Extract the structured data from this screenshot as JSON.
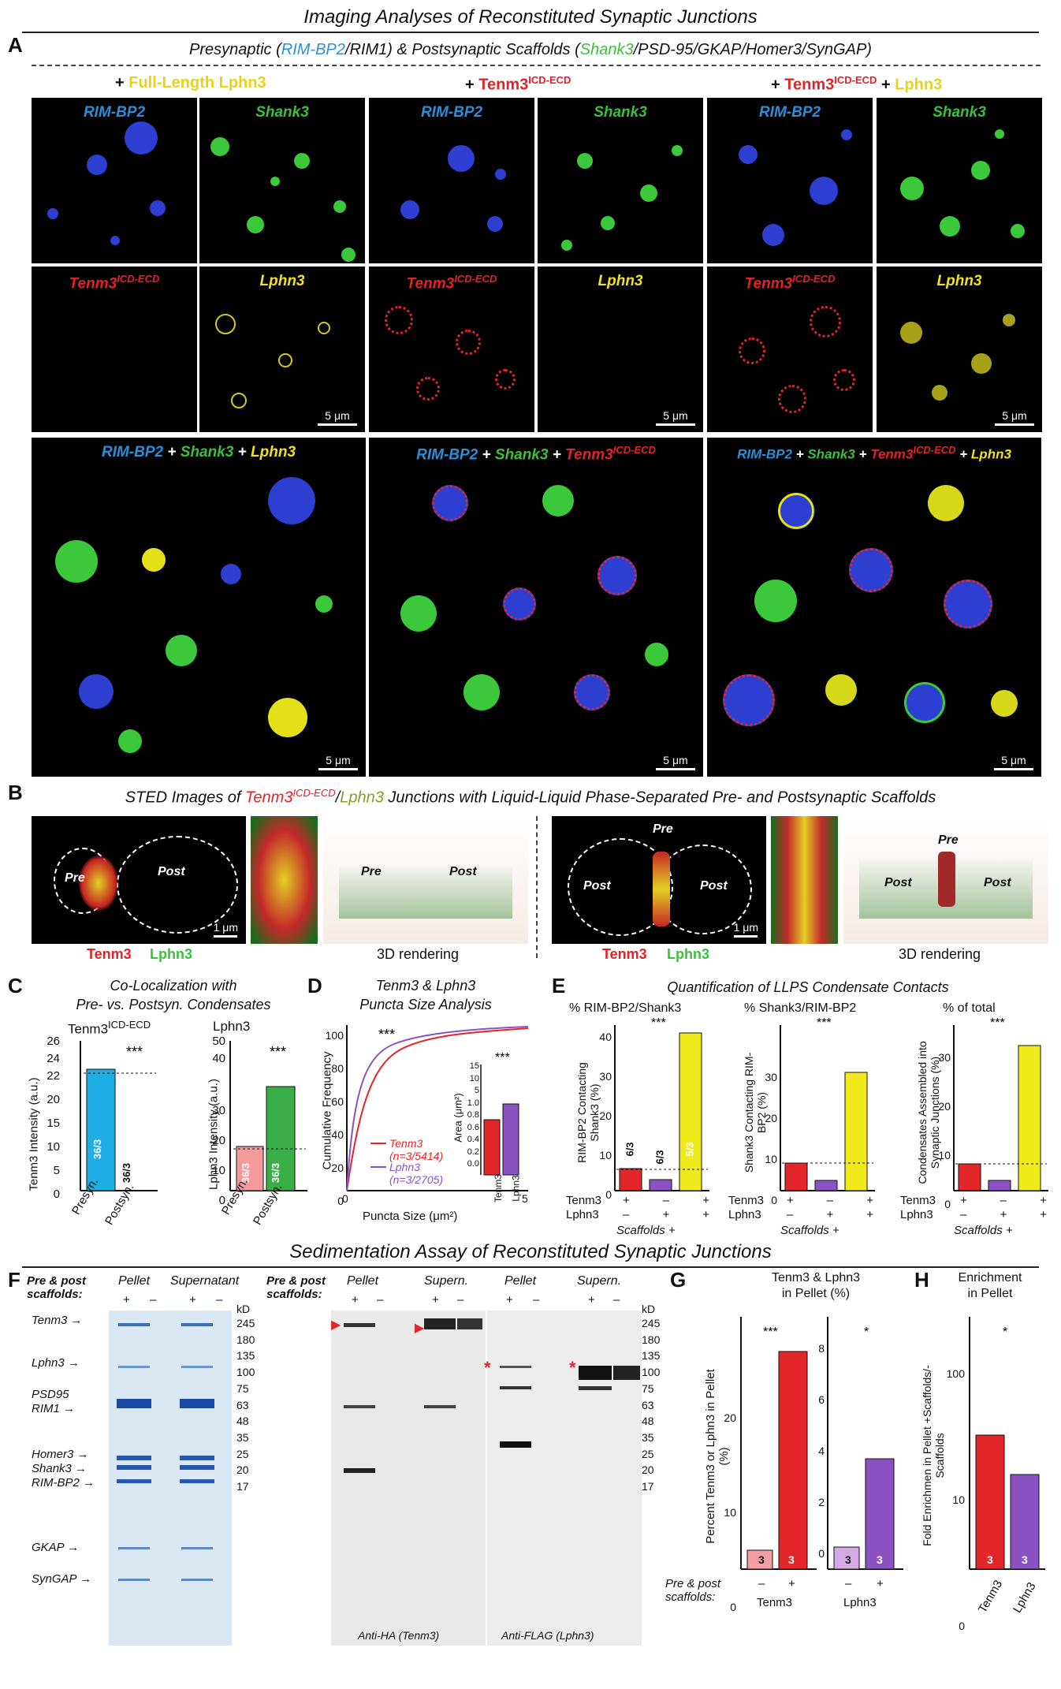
{
  "titles": {
    "imaging": "Imaging Analyses of Reconstituted Synaptic Junctions",
    "sedimentation": "Sedimentation Assay of Reconstituted Synaptic Junctions"
  },
  "panelA": {
    "letter": "A",
    "header_prefix": "Presynaptic (",
    "header_rimbp2": "RIM-BP2",
    "header_mid": "/RIM1) & Postsynaptic Scaffolds (",
    "header_shank3": "Shank3",
    "header_suffix": "/PSD-95/GKAP/Homer3/SynGAP)",
    "cond1_plus": "+ ",
    "cond1": "Full-Length Lphn3",
    "cond2_plus": "+ ",
    "cond2": "Tenm3",
    "cond2_sup": "ICD-ECD",
    "cond3_plus": "+ ",
    "cond3": "Tenm3",
    "cond3_sup": "ICD-ECD",
    "cond3_plus2": " + ",
    "cond3_b": "Lphn3",
    "label_rimbp2": "RIM-BP2",
    "label_shank3": "Shank3",
    "label_tenm3": "Tenm3",
    "label_sup": "ICD-ECD",
    "label_lphn3": "Lphn3",
    "plus": " + ",
    "scale": "5 μm"
  },
  "panelB": {
    "letter": "B",
    "title_prefix": "STED Images of ",
    "title_tenm3": "Tenm3",
    "title_sup": "ICD-ECD",
    "title_slash": "/",
    "title_lphn3": "Lphn3",
    "title_suffix": " Junctions with Liquid-Liquid Phase-Separated Pre- and Postsynaptic Scaffolds",
    "pre": "Pre",
    "post": "Post",
    "scale": "1 μm",
    "legend_tenm3": "Tenm3",
    "legend_lphn3": "Lphn3",
    "rendering": "3D rendering"
  },
  "panelC": {
    "letter": "C",
    "title1": "Co-Localization with",
    "title2": "Pre- vs. Postsyn. Condensates",
    "sub_tenm3": "Tenm3",
    "sub_sup": "ICD-ECD",
    "sub_lphn3": "Lphn3",
    "ylabel_tenm3": "Tenm3 Intensity (a.u.)",
    "ylabel_lphn3": "Lphn3 Intensity (a.u.)",
    "sig": "***",
    "n_presyn_t": "36/3",
    "n_postsyn_t": "36/3",
    "n_presyn_l": "36/3",
    "n_postsyn_l": "36/3",
    "xlabel_pre": "Presyn.",
    "xlabel_post": "Postsyn.",
    "ticks_tenm3_top": [
      "26",
      "24",
      "22"
    ],
    "ticks_tenm3": [
      "20",
      "15",
      "10",
      "5",
      "0"
    ],
    "ticks_lphn3_top": [
      "50",
      "40"
    ],
    "ticks_lphn3": [
      "30",
      "20",
      "10",
      "0"
    ]
  },
  "panelD": {
    "letter": "D",
    "title1": "Tenm3 & Lphn3",
    "title2": "Puncta Size Analysis",
    "ylabel": "Cumulative Frequency",
    "xlabel": "Puncta Size (μm²)",
    "sig": "***",
    "legend_tenm3": "Tenm3",
    "legend_tenm3_n": "(n=3/5414)",
    "legend_lphn3": "Lphn3",
    "legend_lphn3_n": "(n=3/2705)",
    "yticks": [
      "100",
      "80",
      "60",
      "40",
      "20",
      "0"
    ],
    "xticks": [
      "0",
      "5"
    ],
    "inset_ylabel": "Area (μm²)",
    "inset_ticks": [
      "15",
      "10",
      "5",
      "1.0",
      "0.8",
      "0.6",
      "0.4",
      "0.2",
      "0.0"
    ],
    "inset_x": [
      "Tenm3",
      "Lphn3"
    ]
  },
  "panelE": {
    "letter": "E",
    "title": "Quantification of LLPS Condensate Contacts",
    "sub1": "% RIM-BP2/Shank3",
    "sub2": "% Shank3/RIM-BP2",
    "sub3": "% of total",
    "ylabel1": "RIM-BP2 Contacting Shank3 (%)",
    "ylabel2": "Shank3 Contacting RIM-BP2 (%)",
    "ylabel3": "Condensates Assembled into Synaptic Junctions (%)",
    "sig": "***",
    "n1": "6/3",
    "n2": "6/3",
    "n3": "5/3",
    "row_tenm3": "Tenm3",
    "row_lphn3": "Lphn3",
    "plus": "+",
    "minus": "–",
    "footer": "Scaffolds +",
    "ticks1": [
      "40",
      "30",
      "20",
      "10",
      "0"
    ],
    "ticks2": [
      "30",
      "20",
      "10",
      "0"
    ],
    "ticks3": [
      "30",
      "20",
      "10",
      "0"
    ]
  },
  "panelF": {
    "letter": "F",
    "scaffolds_label": "Pre & post scaffolds:",
    "pellet": "Pellet",
    "supernatant": "Supernatant",
    "supern": "Supern.",
    "plus": "+",
    "minus": "–",
    "kd": "kD",
    "markers": [
      "245",
      "180",
      "135",
      "100",
      "75",
      "63",
      "48",
      "35",
      "25",
      "20",
      "17"
    ],
    "bands": [
      "Tenm3",
      "Lphn3",
      "PSD95",
      "RIM1",
      "Homer3",
      "Shank3",
      "RIM-BP2",
      "GKAP",
      "SynGAP"
    ],
    "antiHA": "Anti-HA (Tenm3)",
    "antiFLAG": "Anti-FLAG (Lphn3)"
  },
  "panelG": {
    "letter": "G",
    "title1": "Tenm3 & Lphn3",
    "title2": "in Pellet (%)",
    "ylabel": "Percent Tenm3 or Lphn3 in Pellet (%)",
    "sig1": "***",
    "sig2": "*",
    "n": "3",
    "scaffolds": "Pre & post scaffolds:",
    "minus": "–",
    "plus": "+",
    "x_tenm3": "Tenm3",
    "x_lphn3": "Lphn3",
    "ticks_left": [
      "20",
      "10",
      "0"
    ],
    "ticks_right": [
      "8",
      "6",
      "4",
      "2",
      "0"
    ]
  },
  "panelH": {
    "letter": "H",
    "title1": "Enrichment",
    "title2": "in Pellet",
    "ylabel": "Fold Enrichmen in Pellet +Scaffolds/-Scaffolds",
    "sig": "*",
    "n": "3",
    "ticks": [
      "100",
      "10",
      "0"
    ],
    "x": [
      "Tenm3",
      "Lphn3"
    ]
  }
}
